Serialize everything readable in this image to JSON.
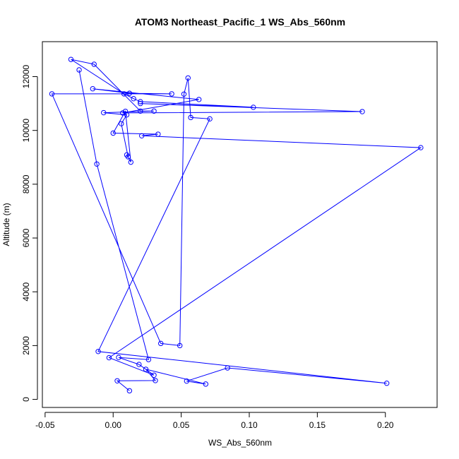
{
  "chart_data": {
    "type": "line",
    "title": "ATOM3 Northeast_Pacific_1 WS_Abs_560nm",
    "xlabel": "WS_Abs_560nm",
    "ylabel": "Altitude (m)",
    "xlim": [
      -0.052,
      0.238
    ],
    "ylim": [
      -300,
      13300
    ],
    "x_ticks": [
      -0.05,
      0.0,
      0.05,
      0.1,
      0.15,
      0.2
    ],
    "x_tick_labels": [
      "-0.05",
      "0.00",
      "0.05",
      "0.10",
      "0.15",
      "0.20"
    ],
    "y_ticks": [
      0,
      2000,
      4000,
      6000,
      8000,
      10000,
      12000
    ],
    "y_tick_labels": [
      "0",
      "2000",
      "4000",
      "6000",
      "8000",
      "10000",
      "12000"
    ],
    "grid": false,
    "legend": "none",
    "series": [
      {
        "color": "#0000ff",
        "marker": "open-circle",
        "x": [
          0.012,
          0.003,
          0.031,
          0.024,
          0.068,
          0.054,
          0.084,
          0.201,
          -0.011,
          0.071,
          0.057,
          0.055,
          0.052,
          0.049,
          0.035,
          -0.045,
          0.043,
          0.012,
          -0.015,
          0.063,
          0.007,
          0.183,
          0.02,
          0.103,
          0.02,
          0.015,
          0.008,
          -0.031,
          -0.014,
          0.02,
          0.03,
          -0.007,
          0.01,
          0.006,
          0.011,
          0.01,
          0.013,
          0.009,
          0.0,
          0.033,
          0.021,
          0.226,
          -0.003,
          0.03,
          0.019,
          0.004,
          0.026,
          -0.012,
          -0.025
        ],
        "y": [
          320,
          690,
          700,
          1120,
          570,
          680,
          1170,
          600,
          1780,
          10430,
          10480,
          11950,
          11350,
          2000,
          2080,
          11360,
          11360,
          11380,
          11550,
          11150,
          10650,
          10700,
          11000,
          10860,
          11070,
          11180,
          11360,
          12640,
          12460,
          10720,
          10720,
          10660,
          10580,
          10250,
          9020,
          9090,
          8820,
          10710,
          9900,
          9860,
          9800,
          9360,
          1550,
          900,
          1300,
          1560,
          1480,
          8750,
          12250
        ]
      }
    ]
  }
}
